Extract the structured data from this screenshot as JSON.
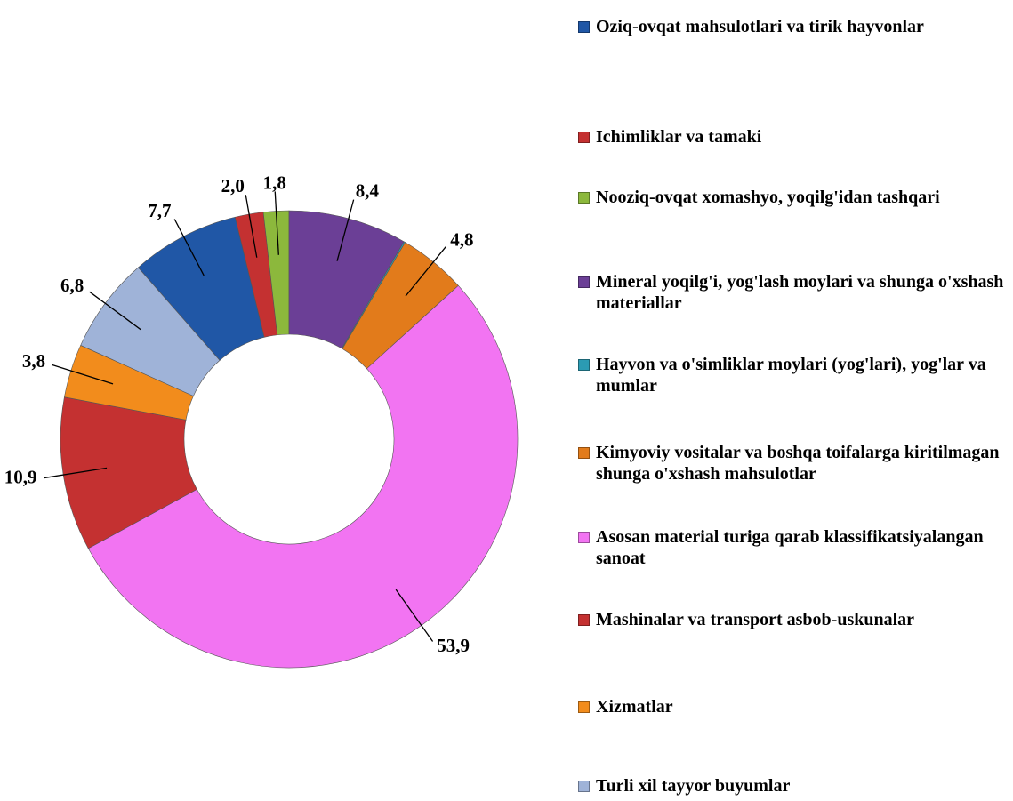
{
  "chart_data": {
    "type": "donut",
    "categories": [
      "Oziq-ovqat mahsulotlari va tirik hayvonlar",
      "Ichimliklar va tamaki",
      "Nooziq-ovqat xomashyo, yoqilg'idan tashqari",
      "Mineral yoqilg'i, yog'lash moylari va shunga o'xshash materiallar",
      "Hayvon va o'simliklar moylari (yog'lari), yog'lar va mumlar",
      "Kimyoviy vositalar va boshqa toifalarga kiritilmagan shunga o'xshash mahsulotlar",
      "Asosan material turiga qarab klassifikatsiyalangan sanoat",
      "Mashinalar va transport asbob-uskunalar",
      "Xizmatlar",
      "Turli xil tayyor buyumlar"
    ],
    "values": [
      7.7,
      2.0,
      1.8,
      8.4,
      0.1,
      4.8,
      53.9,
      10.9,
      3.8,
      6.8
    ],
    "value_labels": [
      "7,7",
      "2,0",
      "1,8",
      "8,4",
      null,
      "4,8",
      "53,9",
      "10,9",
      "3,8",
      "6,8"
    ],
    "colors": [
      "#2057a6",
      "#c43131",
      "#8cb83c",
      "#6b3f96",
      "#2b9bb3",
      "#e27b1b",
      "#f274f2",
      "#c43131",
      "#f28c1c",
      "#9fb3d8"
    ],
    "legend": "right"
  }
}
